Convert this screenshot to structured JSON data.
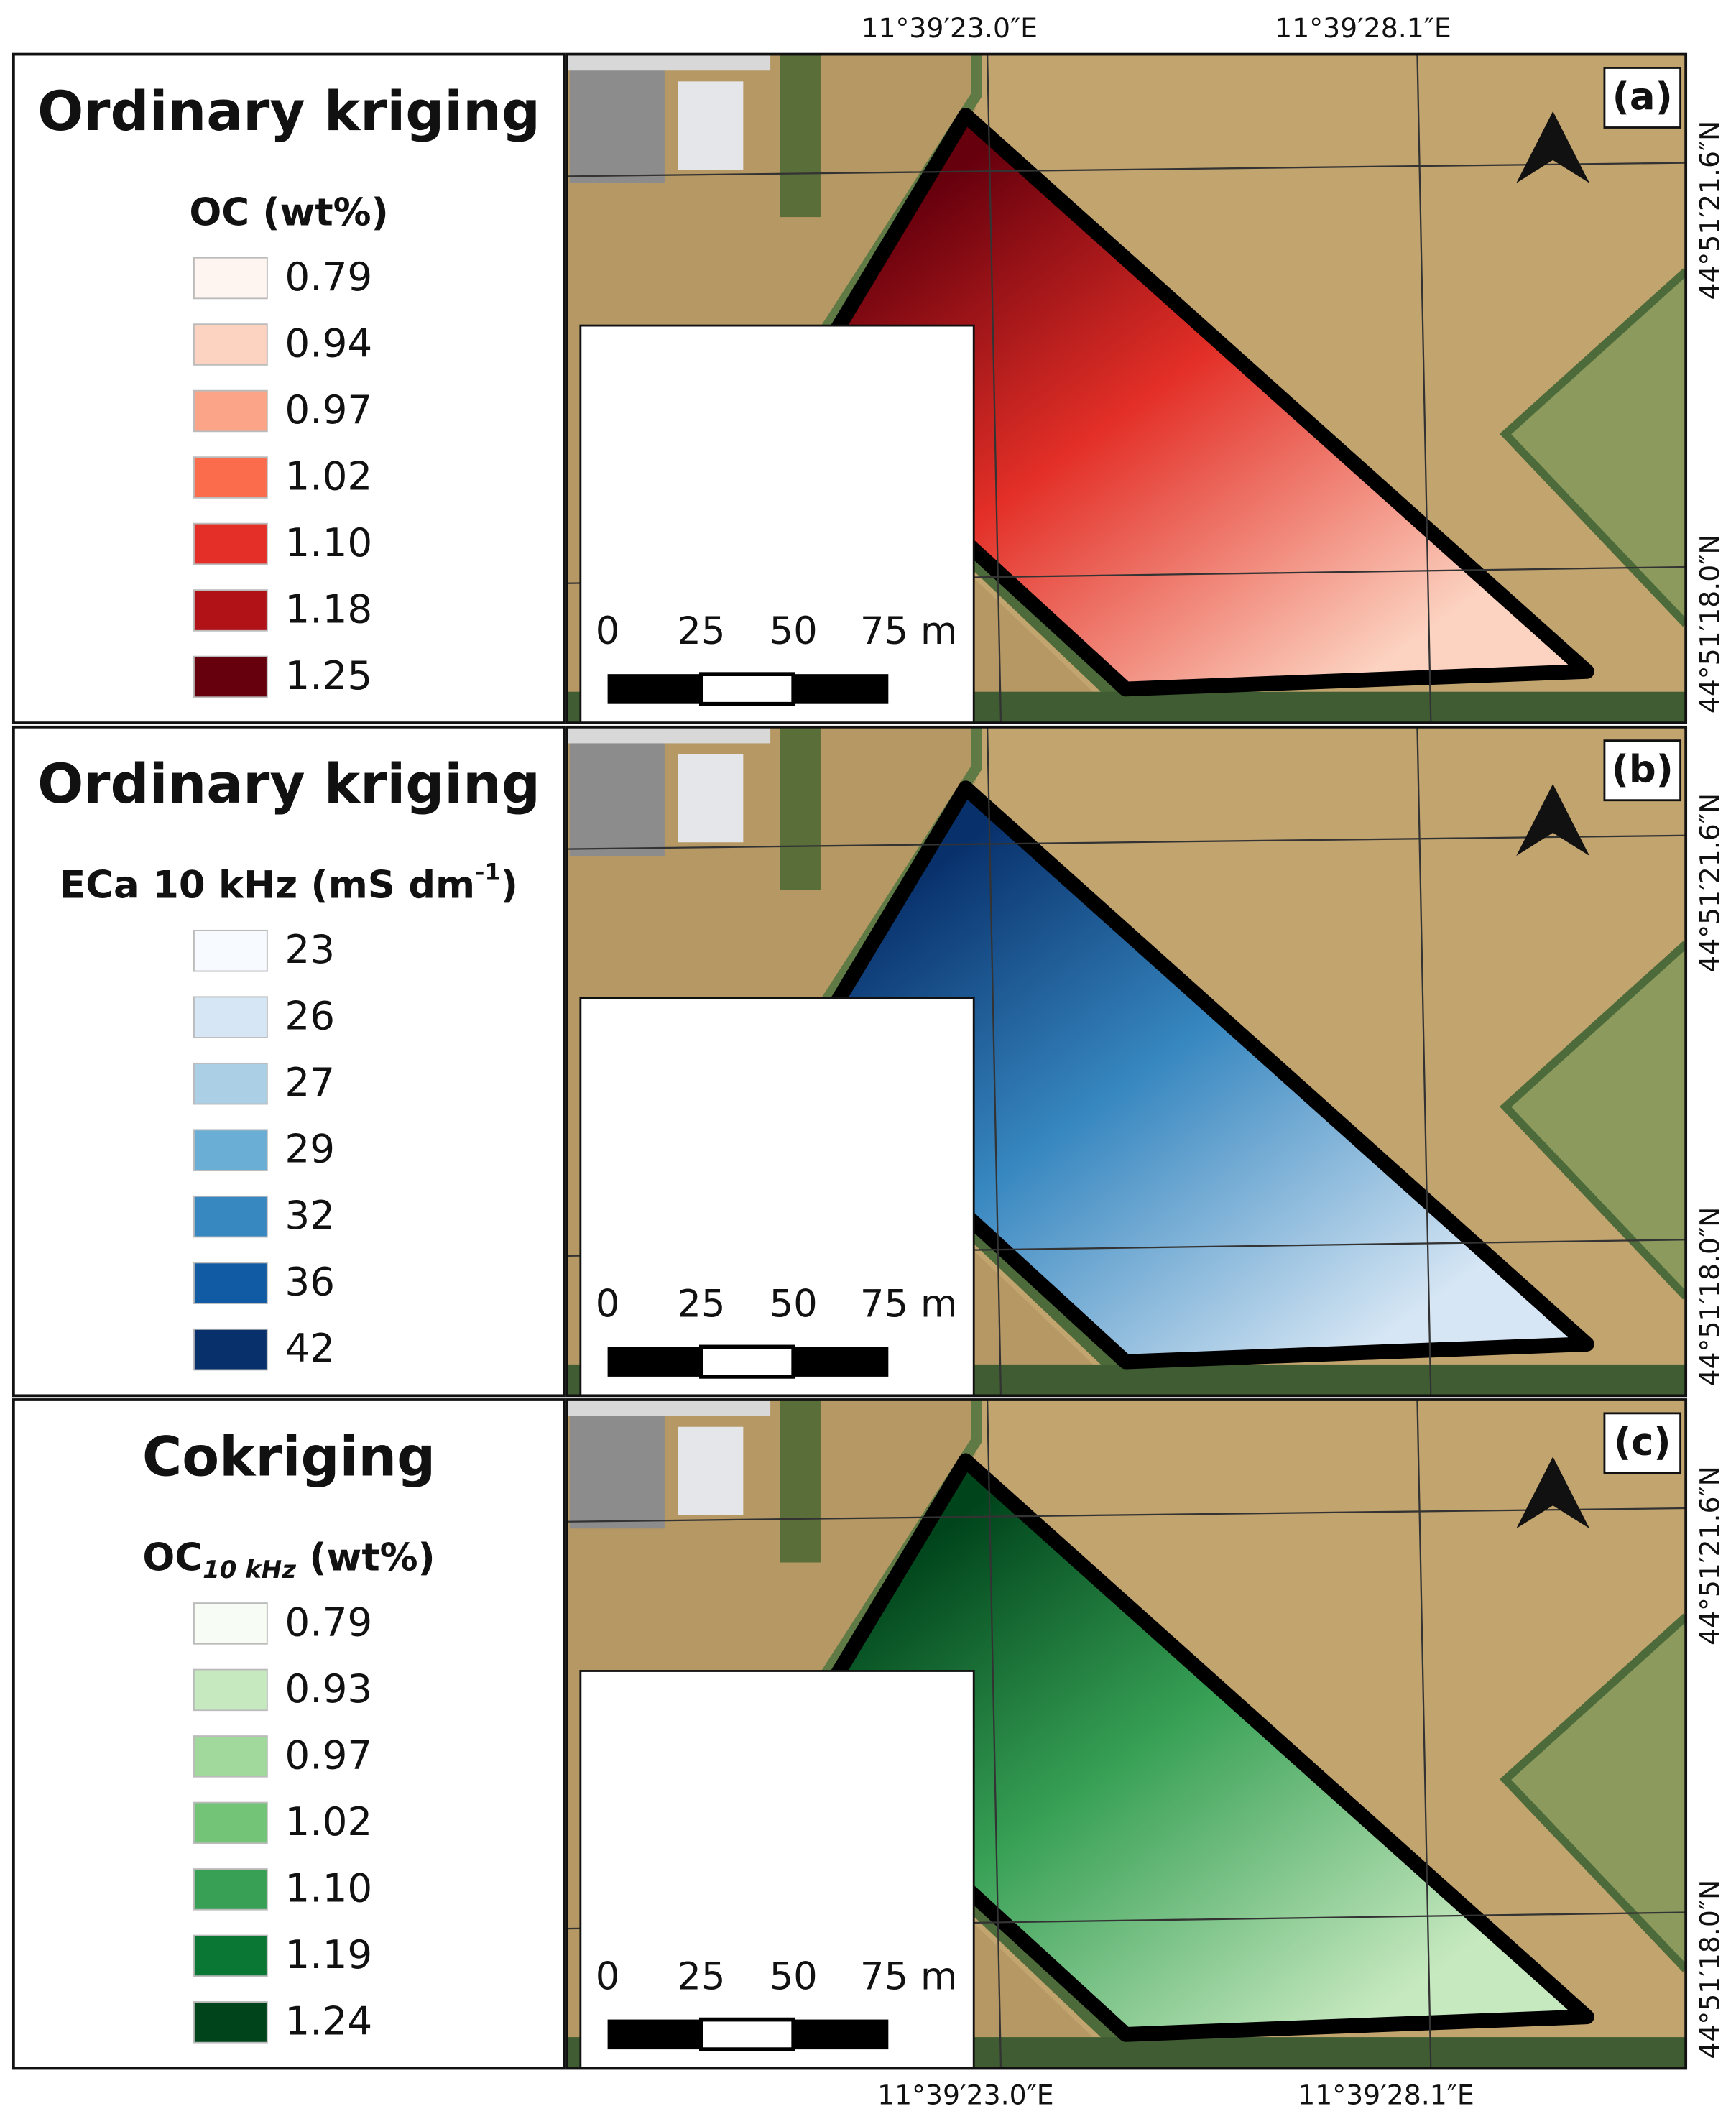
{
  "panels": [
    {
      "label": "(a)",
      "method": "Ordinary kriging",
      "legend_title": {
        "text": "OC (wt%)"
      },
      "legend": [
        {
          "label": "0.79",
          "color": "#fff5f0"
        },
        {
          "label": "0.94",
          "color": "#fcd3c1"
        },
        {
          "label": "0.97",
          "color": "#fca487"
        },
        {
          "label": "1.02",
          "color": "#fb6c4c"
        },
        {
          "label": "1.10",
          "color": "#e32f27"
        },
        {
          "label": "1.18",
          "color": "#b11218"
        },
        {
          "label": "1.25",
          "color": "#67000d"
        }
      ]
    },
    {
      "label": "(b)",
      "method": "Ordinary kriging",
      "legend_title": {
        "text": "ECa 10 kHz (mS dm",
        "superscript": "-1",
        "tail": ")"
      },
      "legend": [
        {
          "label": "23",
          "color": "#f7fbff"
        },
        {
          "label": "26",
          "color": "#d6e6f4"
        },
        {
          "label": "27",
          "color": "#abcfe5"
        },
        {
          "label": "29",
          "color": "#6aaed6"
        },
        {
          "label": "32",
          "color": "#3787c0"
        },
        {
          "label": "36",
          "color": "#105ba4"
        },
        {
          "label": "42",
          "color": "#08306b"
        }
      ]
    },
    {
      "label": "(c)",
      "method": "Cokriging",
      "legend_title": {
        "text": "OC",
        "subscript": "10 kHz",
        "tail": " (wt%)"
      },
      "legend": [
        {
          "label": "0.79",
          "color": "#f7fcf5"
        },
        {
          "label": "0.93",
          "color": "#c7e9c0"
        },
        {
          "label": "0.97",
          "color": "#a0d99b"
        },
        {
          "label": "1.02",
          "color": "#73c476"
        },
        {
          "label": "1.10",
          "color": "#37a055"
        },
        {
          "label": "1.19",
          "color": "#0b7734"
        },
        {
          "label": "1.24",
          "color": "#00441b"
        }
      ]
    }
  ],
  "coordinates": {
    "longitude": [
      "11°39′23.0″E",
      "11°39′28.1″E"
    ],
    "latitude": [
      "44°51′21.6″N",
      "44°51′18.0″N"
    ]
  },
  "scale_bar": [
    "0",
    "25",
    "50",
    "75 m"
  ]
}
